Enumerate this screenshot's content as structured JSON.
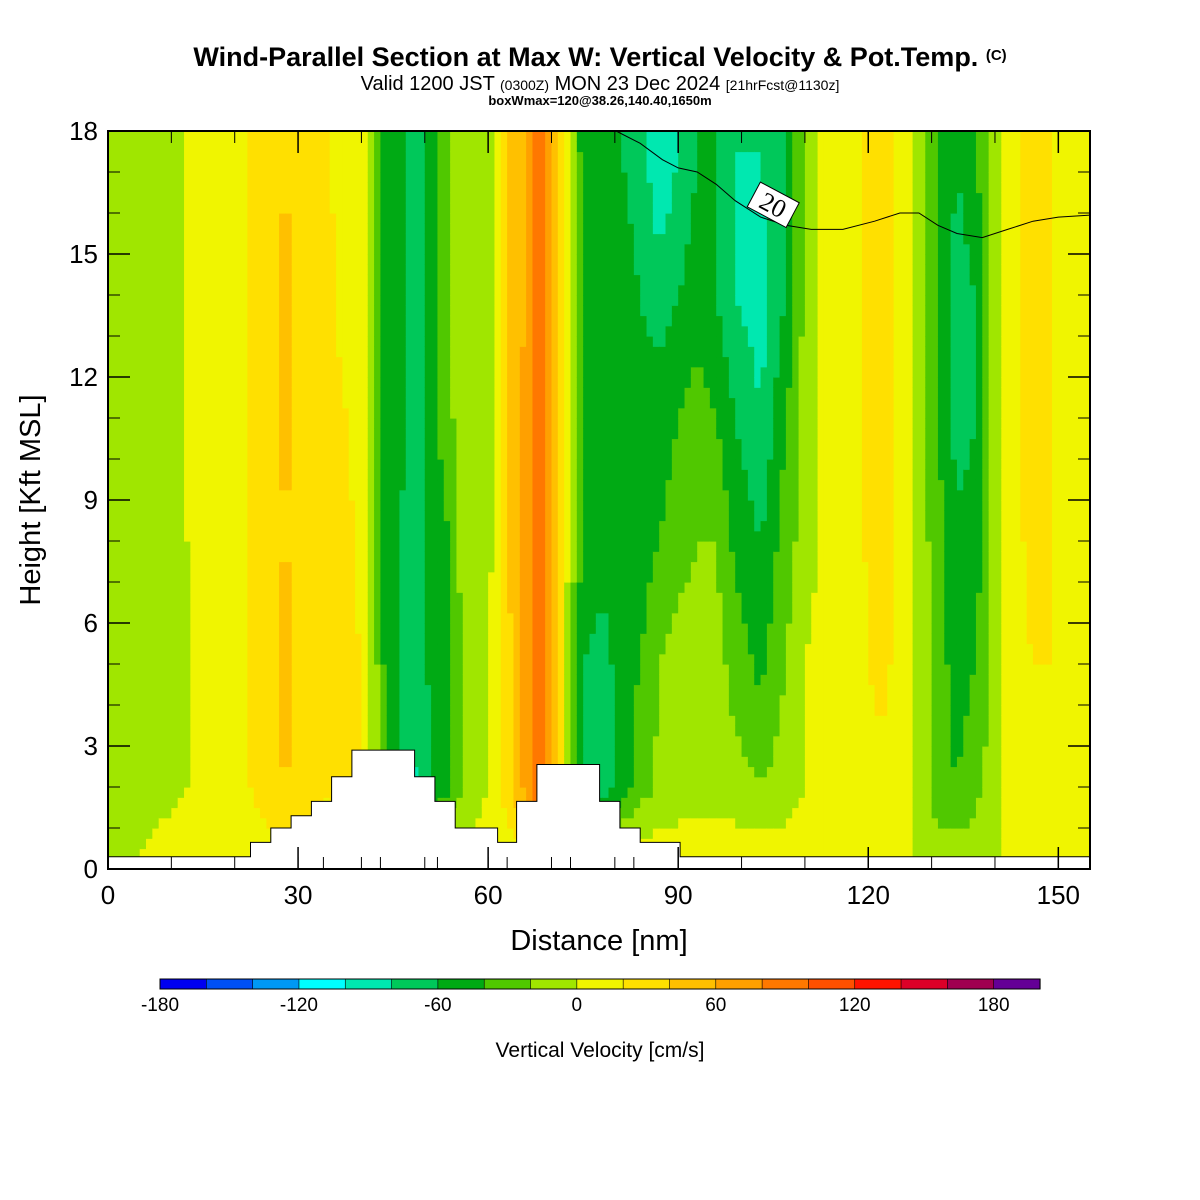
{
  "title": {
    "main": "Wind-Parallel Section at Max W: Vertical Velocity & Pot.Temp.",
    "main_suffix": "(C)",
    "valid_prefix": "Valid 1200 JST",
    "valid_zulu": "(0300Z)",
    "valid_date": "MON 23 Dec 2024",
    "forecast": "[21hrFcst@1130z]",
    "box_info": "boxWmax=120@38.26,140.40,1650m"
  },
  "chart_data": {
    "type": "heatmap",
    "xlabel": "Distance [nm]",
    "ylabel": "Height [Kft MSL]",
    "xlim": [
      0,
      155
    ],
    "ylim": [
      0,
      18
    ],
    "x_ticks": [
      0,
      30,
      60,
      90,
      120,
      150
    ],
    "y_ticks": [
      0,
      3,
      6,
      9,
      12,
      15,
      18
    ],
    "colorbar": {
      "label": "Vertical Velocity [cm/s]",
      "levels": [
        -180,
        -160,
        -140,
        -120,
        -100,
        -80,
        -60,
        -40,
        -20,
        0,
        20,
        40,
        60,
        80,
        100,
        120,
        140,
        160,
        180,
        200
      ],
      "tick_labels": [
        "-180",
        "-120",
        "-60",
        "0",
        "60",
        "120",
        "180"
      ],
      "tick_values": [
        -180,
        -120,
        -60,
        0,
        60,
        120,
        180
      ],
      "colors": [
        "#0000f0",
        "#0050f5",
        "#0098f5",
        "#00ffff",
        "#00e8b0",
        "#00c85a",
        "#00aa14",
        "#50c800",
        "#a0e600",
        "#f0f500",
        "#ffe000",
        "#ffc000",
        "#ffa000",
        "#ff7800",
        "#ff5000",
        "#ff1400",
        "#dc0028",
        "#a00050",
        "#640096"
      ]
    },
    "vertical_velocity_columns": [
      {
        "x": 0,
        "w": [
          0,
          0,
          0,
          -10,
          -10,
          -10,
          -10
        ]
      },
      {
        "x": 5,
        "w": [
          0,
          -10,
          -10,
          -10,
          -10,
          -10,
          -10
        ]
      },
      {
        "x": 10,
        "w": [
          10,
          -5,
          -10,
          -10,
          -10,
          -10,
          -10
        ]
      },
      {
        "x": 15,
        "w": [
          10,
          5,
          5,
          10,
          10,
          10,
          10
        ]
      },
      {
        "x": 20,
        "w": [
          10,
          10,
          10,
          10,
          10,
          10,
          10
        ]
      },
      {
        "x": 25,
        "w": [
          10,
          30,
          30,
          30,
          30,
          30,
          30
        ]
      },
      {
        "x": 28,
        "w": [
          10,
          40,
          50,
          40,
          45,
          45,
          40
        ]
      },
      {
        "x": 31,
        "w": [
          10,
          30,
          30,
          30,
          30,
          30,
          30
        ]
      },
      {
        "x": 35,
        "w": [
          10,
          20,
          20,
          25,
          25,
          25,
          20
        ]
      },
      {
        "x": 38,
        "w": [
          10,
          40,
          30,
          25,
          20,
          10,
          10
        ]
      },
      {
        "x": 40,
        "w": [
          10,
          30,
          20,
          10,
          10,
          10,
          10
        ]
      },
      {
        "x": 42,
        "w": [
          10,
          -10,
          -10,
          -15,
          -15,
          -15,
          -15
        ]
      },
      {
        "x": 44,
        "w": [
          10,
          -40,
          -50,
          -50,
          -50,
          -50,
          -50
        ]
      },
      {
        "x": 46,
        "w": [
          10,
          -60,
          -60,
          -60,
          -50,
          -50,
          -50
        ]
      },
      {
        "x": 48,
        "w": [
          10,
          -85,
          -80,
          -75,
          -70,
          -70,
          -70
        ]
      },
      {
        "x": 50,
        "w": [
          10,
          -70,
          -60,
          -60,
          -60,
          -60,
          -60
        ]
      },
      {
        "x": 53,
        "w": [
          10,
          -50,
          -50,
          -50,
          -30,
          -30,
          -30
        ]
      },
      {
        "x": 56,
        "w": [
          10,
          -20,
          -20,
          -10,
          -10,
          -10,
          -10
        ]
      },
      {
        "x": 60,
        "w": [
          10,
          0,
          0,
          -10,
          -10,
          -10,
          -10
        ]
      },
      {
        "x": 63,
        "w": [
          10,
          30,
          30,
          40,
          40,
          40,
          40
        ]
      },
      {
        "x": 66,
        "w": [
          10,
          70,
          70,
          70,
          70,
          60,
          60
        ]
      },
      {
        "x": 68,
        "w": [
          10,
          110,
          90,
          90,
          100,
          90,
          90
        ]
      },
      {
        "x": 70,
        "w": [
          10,
          60,
          60,
          60,
          60,
          60,
          60
        ]
      },
      {
        "x": 72,
        "w": [
          10,
          10,
          10,
          10,
          10,
          10,
          10
        ]
      },
      {
        "x": 75,
        "w": [
          10,
          -60,
          -60,
          -45,
          -45,
          -45,
          -50
        ]
      },
      {
        "x": 78,
        "w": [
          10,
          -80,
          -70,
          -50,
          -50,
          -50,
          -50
        ]
      },
      {
        "x": 81,
        "w": [
          10,
          -50,
          -50,
          -50,
          -50,
          -50,
          -60
        ]
      },
      {
        "x": 84,
        "w": [
          10,
          -30,
          -40,
          -50,
          -50,
          -60,
          -70
        ]
      },
      {
        "x": 87,
        "w": [
          10,
          -15,
          -20,
          -40,
          -50,
          -70,
          -100
        ]
      },
      {
        "x": 90,
        "w": [
          10,
          -10,
          -10,
          -30,
          -40,
          -60,
          -80
        ]
      },
      {
        "x": 93,
        "w": [
          10,
          -10,
          -10,
          -20,
          -30,
          -50,
          -60
        ]
      },
      {
        "x": 96,
        "w": [
          10,
          -10,
          -10,
          -20,
          -40,
          -60,
          -60
        ]
      },
      {
        "x": 99,
        "w": [
          10,
          -10,
          -30,
          -45,
          -60,
          -80,
          -80
        ]
      },
      {
        "x": 103,
        "w": [
          10,
          -20,
          -45,
          -60,
          -80,
          -90,
          -80
        ]
      },
      {
        "x": 107,
        "w": [
          10,
          -10,
          -20,
          -30,
          -40,
          -60,
          -60
        ]
      },
      {
        "x": 110,
        "w": [
          10,
          0,
          0,
          -10,
          -10,
          -15,
          -15
        ]
      },
      {
        "x": 114,
        "w": [
          10,
          10,
          10,
          10,
          10,
          10,
          10
        ]
      },
      {
        "x": 118,
        "w": [
          10,
          10,
          10,
          15,
          15,
          15,
          15
        ]
      },
      {
        "x": 122,
        "w": [
          10,
          10,
          30,
          30,
          30,
          30,
          30
        ]
      },
      {
        "x": 125,
        "w": [
          10,
          10,
          10,
          10,
          10,
          10,
          10
        ]
      },
      {
        "x": 128,
        "w": [
          -10,
          -10,
          -10,
          -10,
          -10,
          -10,
          -10
        ]
      },
      {
        "x": 131,
        "w": [
          -10,
          -30,
          -30,
          -30,
          -40,
          -40,
          -40
        ]
      },
      {
        "x": 134,
        "w": [
          -10,
          -40,
          -50,
          -55,
          -70,
          -70,
          -60
        ]
      },
      {
        "x": 137,
        "w": [
          -10,
          -25,
          -40,
          -50,
          -60,
          -60,
          -40
        ]
      },
      {
        "x": 140,
        "w": [
          -10,
          -10,
          -10,
          -10,
          -10,
          -10,
          -10
        ]
      },
      {
        "x": 143,
        "w": [
          10,
          10,
          10,
          10,
          10,
          10,
          10
        ]
      },
      {
        "x": 146,
        "w": [
          10,
          10,
          20,
          30,
          30,
          30,
          30
        ]
      },
      {
        "x": 149,
        "w": [
          10,
          10,
          20,
          20,
          20,
          20,
          20
        ]
      },
      {
        "x": 152,
        "w": [
          10,
          10,
          10,
          10,
          10,
          10,
          10
        ]
      },
      {
        "x": 155,
        "w": [
          10,
          10,
          10,
          10,
          10,
          10,
          10
        ]
      }
    ],
    "w_row_heights": [
      0.3,
      2,
      5,
      8,
      11,
      14,
      17.5
    ],
    "terrain": [
      [
        0,
        0.3
      ],
      [
        22.5,
        0.3
      ],
      [
        22.5,
        0.65
      ],
      [
        25.7,
        0.65
      ],
      [
        25.7,
        1.0
      ],
      [
        28.9,
        1.0
      ],
      [
        28.9,
        1.3
      ],
      [
        32.1,
        1.3
      ],
      [
        32.1,
        1.65
      ],
      [
        35.3,
        1.65
      ],
      [
        35.3,
        2.25
      ],
      [
        38.5,
        2.25
      ],
      [
        38.5,
        2.9
      ],
      [
        48.4,
        2.9
      ],
      [
        48.4,
        2.25
      ],
      [
        51.6,
        2.25
      ],
      [
        51.6,
        1.65
      ],
      [
        54.8,
        1.65
      ],
      [
        54.8,
        1.0
      ],
      [
        61.5,
        1.0
      ],
      [
        61.5,
        0.65
      ],
      [
        64.5,
        0.65
      ],
      [
        64.5,
        1.65
      ],
      [
        67.7,
        1.65
      ],
      [
        67.7,
        2.55
      ],
      [
        77.6,
        2.55
      ],
      [
        77.6,
        1.65
      ],
      [
        80.8,
        1.65
      ],
      [
        80.8,
        1.0
      ],
      [
        84.0,
        1.0
      ],
      [
        84.0,
        0.65
      ],
      [
        90.3,
        0.65
      ],
      [
        90.3,
        0.3
      ],
      [
        155,
        0.3
      ]
    ],
    "theta_contour": {
      "label": "20",
      "points": [
        [
          80.2,
          18
        ],
        [
          84,
          17.7
        ],
        [
          87.5,
          17.3
        ],
        [
          90,
          17.1
        ],
        [
          93,
          17
        ],
        [
          96,
          16.7
        ],
        [
          99,
          16.3
        ],
        [
          103,
          15.9
        ],
        [
          107,
          15.7
        ],
        [
          111,
          15.6
        ],
        [
          116,
          15.6
        ],
        [
          121,
          15.8
        ],
        [
          125,
          16.0
        ],
        [
          128,
          16.0
        ],
        [
          131,
          15.7
        ],
        [
          134,
          15.5
        ],
        [
          138,
          15.4
        ],
        [
          142,
          15.6
        ],
        [
          146,
          15.8
        ],
        [
          150,
          15.9
        ],
        [
          155,
          15.95
        ]
      ],
      "label_at": [
        105,
        16.2
      ]
    }
  }
}
